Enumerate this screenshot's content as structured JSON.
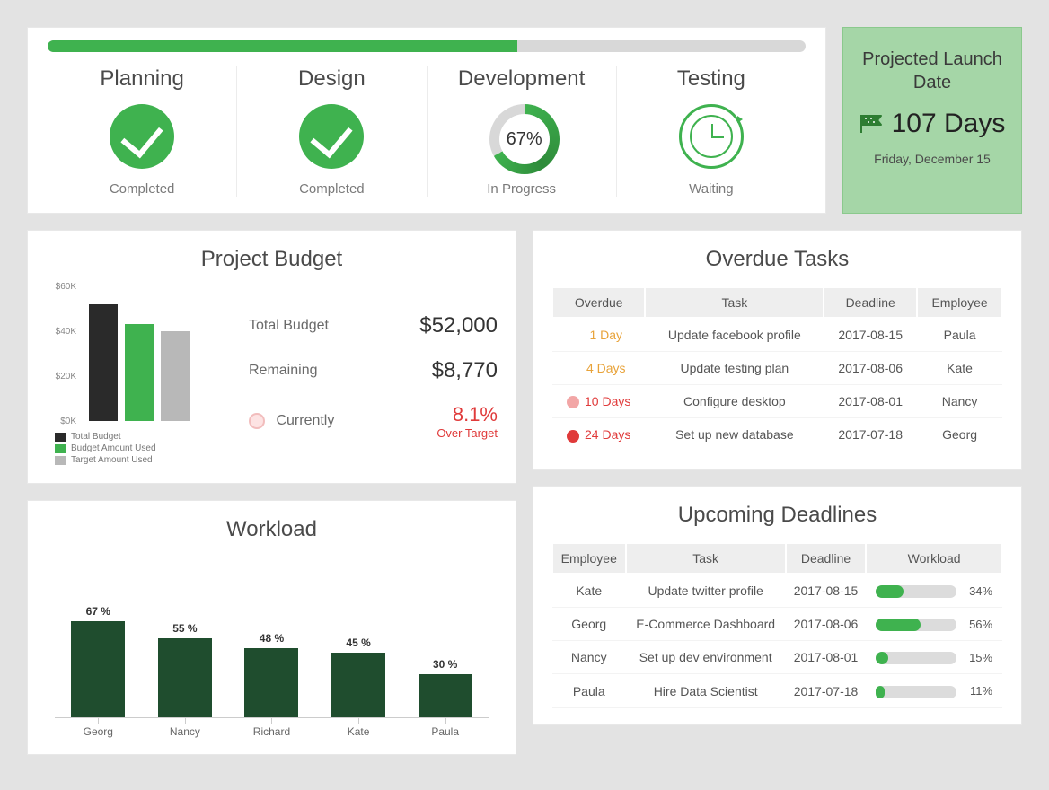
{
  "colors": {
    "green": "#3fb24f",
    "green_light": "#a5d6a7",
    "dark_green": "#1f4d2e",
    "track_grey": "#d8d8d8",
    "bar_black": "#2a2a2a",
    "bar_grey": "#b8b8b8",
    "red": "#e03a3a",
    "orange": "#e8a33a",
    "red_light": "#f2a6a6",
    "red_med": "#e84b4b",
    "page_bg": "#e3e3e3"
  },
  "overall_progress_pct": 62,
  "phases": [
    {
      "title": "Planning",
      "status": "Completed",
      "kind": "check"
    },
    {
      "title": "Design",
      "status": "Completed",
      "kind": "check"
    },
    {
      "title": "Development",
      "status": "In Progress",
      "kind": "donut",
      "pct": 67,
      "pct_label": "67%"
    },
    {
      "title": "Testing",
      "status": "Waiting",
      "kind": "clock"
    }
  ],
  "launch": {
    "title": "Projected Launch Date",
    "days": "107 Days",
    "date": "Friday, December 15"
  },
  "budget": {
    "title": "Project Budget",
    "chart": {
      "type": "bar",
      "ylim": [
        0,
        60000
      ],
      "yticks": [
        0,
        20000,
        40000,
        60000
      ],
      "ytick_labels": [
        "$0K",
        "$20K",
        "$40K",
        "$60K"
      ],
      "bars": [
        {
          "label": "Total Budget",
          "value": 52000,
          "color": "#2a2a2a"
        },
        {
          "label": "Budget Amount Used",
          "value": 43230,
          "color": "#3fb24f"
        },
        {
          "label": "Target Amount Used",
          "value": 40000,
          "color": "#b8b8b8"
        }
      ]
    },
    "info": {
      "total_label": "Total Budget",
      "total_value": "$52,000",
      "remaining_label": "Remaining",
      "remaining_value": "$8,770",
      "currently_label": "Currently",
      "over_pct": "8.1%",
      "over_text": "Over Target"
    }
  },
  "overdue": {
    "title": "Overdue Tasks",
    "columns": [
      "Overdue",
      "Task",
      "Deadline",
      "Employee"
    ],
    "rows": [
      {
        "overdue": "1 Day",
        "color": "#e8a33a",
        "dot": null,
        "task": "Update facebook profile",
        "deadline": "2017-08-15",
        "employee": "Paula"
      },
      {
        "overdue": "4 Days",
        "color": "#e8a33a",
        "dot": null,
        "task": "Update testing plan",
        "deadline": "2017-08-06",
        "employee": "Kate"
      },
      {
        "overdue": "10 Days",
        "color": "#e03a3a",
        "dot": "#f2a6a6",
        "task": "Configure desktop",
        "deadline": "2017-08-01",
        "employee": "Nancy"
      },
      {
        "overdue": "24 Days",
        "color": "#e03a3a",
        "dot": "#e03a3a",
        "task": "Set up new database",
        "deadline": "2017-07-18",
        "employee": "Georg"
      }
    ]
  },
  "workload": {
    "title": "Workload",
    "chart": {
      "type": "bar",
      "max": 100,
      "bar_color": "#1f4d2e",
      "bars": [
        {
          "name": "Georg",
          "pct": 67,
          "label": "67 %"
        },
        {
          "name": "Nancy",
          "pct": 55,
          "label": "55 %"
        },
        {
          "name": "Richard",
          "pct": 48,
          "label": "48 %"
        },
        {
          "name": "Kate",
          "pct": 45,
          "label": "45 %"
        },
        {
          "name": "Paula",
          "pct": 30,
          "label": "30 %"
        }
      ]
    }
  },
  "upcoming": {
    "title": "Upcoming Deadlines",
    "columns": [
      "Employee",
      "Task",
      "Deadline",
      "Workload"
    ],
    "rows": [
      {
        "employee": "Kate",
        "task": "Update twitter profile",
        "deadline": "2017-08-15",
        "pct": 34,
        "pct_label": "34%"
      },
      {
        "employee": "Georg",
        "task": "E-Commerce Dashboard",
        "deadline": "2017-08-06",
        "pct": 56,
        "pct_label": "56%"
      },
      {
        "employee": "Nancy",
        "task": "Set up dev environment",
        "deadline": "2017-08-01",
        "pct": 15,
        "pct_label": "15%"
      },
      {
        "employee": "Paula",
        "task": "Hire Data Scientist",
        "deadline": "2017-07-18",
        "pct": 11,
        "pct_label": "11%"
      }
    ]
  }
}
